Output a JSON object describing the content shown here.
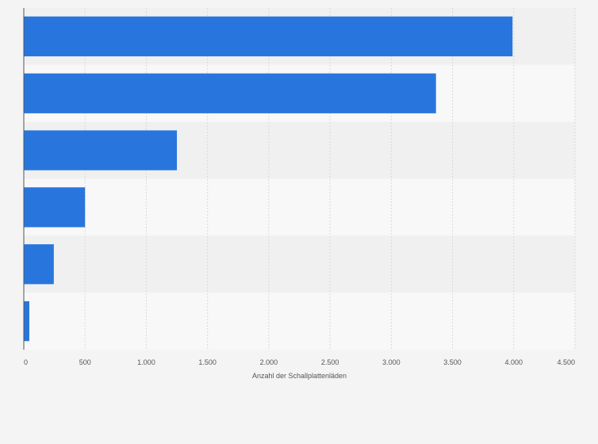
{
  "chart_data": {
    "type": "bar",
    "orientation": "horizontal",
    "categories": [
      "",
      "",
      "",
      "",
      "",
      ""
    ],
    "values": [
      3990,
      3365,
      1250,
      500,
      245,
      45
    ],
    "title": "",
    "xlabel": "Anzahl der Schallplattenläden",
    "ylabel": "",
    "xlim": [
      0,
      4500
    ],
    "xticks": [
      0,
      500,
      1000,
      1500,
      2000,
      2500,
      3000,
      3500,
      4000,
      4500
    ],
    "xtick_labels": [
      "0",
      "500",
      "1.000",
      "1.500",
      "2.000",
      "2.500",
      "3.000",
      "3.500",
      "4.000",
      "4.500"
    ],
    "grid": true,
    "legend": "none",
    "colors": {
      "bar": "#2876dd",
      "band_dark": "#f0f0f0",
      "band_light": "#f8f8f8",
      "grid": "#d9d9d9",
      "axis": "#555555"
    }
  }
}
